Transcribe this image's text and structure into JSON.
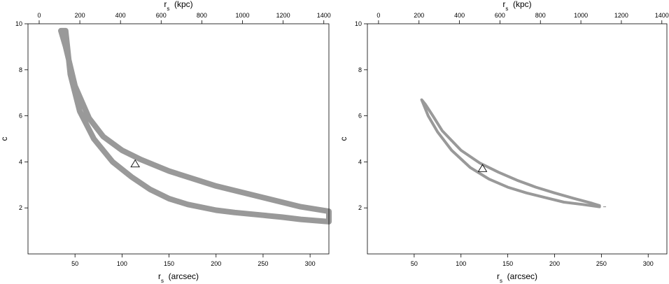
{
  "chart_data": [
    {
      "type": "contour",
      "panel": "left",
      "xlabel": "r_s (arcsec)",
      "top_xlabel": "r_s (kpc)",
      "ylabel": "c",
      "xlim": [
        0,
        320
      ],
      "ylim": [
        0,
        10
      ],
      "top_xlim": [
        -55,
        1425
      ],
      "x_ticks": [
        50,
        100,
        150,
        200,
        250,
        300
      ],
      "y_ticks": [
        2,
        4,
        6,
        8,
        10
      ],
      "top_ticks": [
        0,
        200,
        400,
        600,
        800,
        1000,
        1200,
        1400
      ],
      "grid": false,
      "band_color": "#999999",
      "contour_outer": [
        [
          35,
          9.7
        ],
        [
          40,
          9.0
        ],
        [
          50,
          7.3
        ],
        [
          65,
          5.9
        ],
        [
          80,
          5.1
        ],
        [
          100,
          4.5
        ],
        [
          120,
          4.1
        ],
        [
          150,
          3.6
        ],
        [
          200,
          2.95
        ],
        [
          250,
          2.45
        ],
        [
          290,
          2.05
        ],
        [
          320,
          1.85
        ]
      ],
      "contour_inner": [
        [
          320,
          1.4
        ],
        [
          290,
          1.5
        ],
        [
          270,
          1.6
        ],
        [
          250,
          1.68
        ],
        [
          220,
          1.8
        ],
        [
          200,
          1.9
        ],
        [
          170,
          2.15
        ],
        [
          150,
          2.4
        ],
        [
          130,
          2.8
        ],
        [
          110,
          3.35
        ],
        [
          90,
          4.0
        ],
        [
          70,
          5.0
        ],
        [
          55,
          6.2
        ],
        [
          45,
          7.8
        ],
        [
          40,
          9.7
        ]
      ],
      "best_fit": {
        "x": 114,
        "y": 3.9
      }
    },
    {
      "type": "contour",
      "panel": "right",
      "xlabel": "r_s (arcsec)",
      "top_xlabel": "r_s (kpc)",
      "ylabel": "c",
      "xlim": [
        0,
        320
      ],
      "ylim": [
        0,
        10
      ],
      "top_xlim": [
        -55,
        1425
      ],
      "x_ticks": [
        50,
        100,
        150,
        200,
        250,
        300
      ],
      "y_ticks": [
        2,
        4,
        6,
        8,
        10
      ],
      "top_ticks": [
        0,
        200,
        400,
        600,
        800,
        1000,
        1200,
        1400
      ],
      "grid": false,
      "band_color": "#999999",
      "contour_outer": [
        [
          58,
          6.7
        ],
        [
          62,
          6.5
        ],
        [
          70,
          6.0
        ],
        [
          80,
          5.35
        ],
        [
          100,
          4.5
        ],
        [
          120,
          3.95
        ],
        [
          140,
          3.55
        ],
        [
          160,
          3.2
        ],
        [
          180,
          2.9
        ],
        [
          200,
          2.65
        ],
        [
          220,
          2.42
        ],
        [
          240,
          2.2
        ],
        [
          248,
          2.1
        ]
      ],
      "contour_inner": [
        [
          248,
          2.05
        ],
        [
          230,
          2.15
        ],
        [
          210,
          2.25
        ],
        [
          190,
          2.45
        ],
        [
          170,
          2.65
        ],
        [
          150,
          2.9
        ],
        [
          130,
          3.25
        ],
        [
          110,
          3.75
        ],
        [
          90,
          4.5
        ],
        [
          75,
          5.3
        ],
        [
          65,
          6.0
        ],
        [
          59,
          6.6
        ]
      ],
      "best_fit": {
        "x": 123,
        "y": 3.7
      }
    }
  ]
}
